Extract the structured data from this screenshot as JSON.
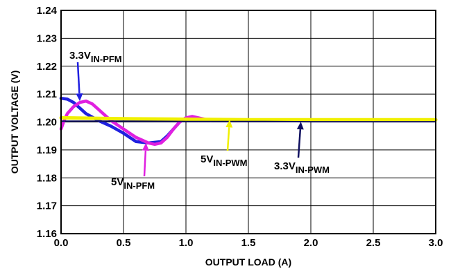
{
  "chart_data": {
    "type": "line",
    "title": "",
    "xlabel": "OUTPUT LOAD (A)",
    "ylabel": "OUTPUT VOLTAGE (V)",
    "xlim": [
      0,
      3.0
    ],
    "ylim": [
      1.16,
      1.24
    ],
    "xticks": [
      "0.0",
      "0.5",
      "1.0",
      "1.5",
      "2.0",
      "2.5",
      "3.0"
    ],
    "yticks": [
      "1.16",
      "1.17",
      "1.18",
      "1.19",
      "1.20",
      "1.21",
      "1.22",
      "1.23",
      "1.24"
    ],
    "grid": true,
    "series": [
      {
        "name": "3.3V IN-PFM",
        "color": "#2020e0",
        "x": [
          0.0,
          0.05,
          0.1,
          0.15,
          0.2,
          0.3,
          0.4,
          0.5,
          0.6,
          0.7,
          0.8,
          0.85,
          0.9,
          0.95,
          1.0,
          1.05,
          1.1
        ],
        "y": [
          1.2085,
          1.2082,
          1.207,
          1.205,
          1.203,
          1.2005,
          1.1985,
          1.196,
          1.193,
          1.1925,
          1.193,
          1.195,
          1.1975,
          1.2,
          1.2015,
          1.2015,
          1.2005
        ]
      },
      {
        "name": "5V IN-PFM",
        "color": "#e020e0",
        "x": [
          0.0,
          0.02,
          0.05,
          0.1,
          0.15,
          0.2,
          0.25,
          0.3,
          0.35,
          0.4,
          0.5,
          0.6,
          0.7,
          0.75,
          0.8,
          0.85,
          0.9,
          0.95,
          1.0,
          1.05,
          1.1,
          1.15,
          1.2
        ],
        "y": [
          1.1975,
          1.2,
          1.203,
          1.2055,
          1.207,
          1.2075,
          1.2065,
          1.2045,
          1.2025,
          1.2005,
          1.1975,
          1.1945,
          1.1925,
          1.192,
          1.1925,
          1.1945,
          1.1975,
          1.2,
          1.2015,
          1.202,
          1.2015,
          1.201,
          1.2005
        ]
      },
      {
        "name": "5V IN-PWM",
        "color": "#f0f000",
        "x": [
          0.0,
          0.5,
          1.0,
          1.5,
          2.0,
          2.5,
          3.0
        ],
        "y": [
          1.2015,
          1.2012,
          1.201,
          1.2008,
          1.2008,
          1.2008,
          1.2008
        ]
      },
      {
        "name": "3.3V IN-PWM",
        "color": "#101060",
        "x": [
          0.0,
          0.5,
          1.0,
          1.5,
          2.0,
          2.5,
          3.0
        ],
        "y": [
          1.2003,
          1.2003,
          1.2002,
          1.2002,
          1.2001,
          1.2001,
          1.2001
        ]
      }
    ],
    "annotations": [
      {
        "main": "3.3V",
        "sub": "IN-PFM",
        "color": "#2020e0",
        "target": [
          0.15,
          1.2075
        ]
      },
      {
        "main": "5V",
        "sub": "IN-PFM",
        "color": "#e020e0",
        "target": [
          0.68,
          1.1925
        ]
      },
      {
        "main": "5V",
        "sub": "IN-PWM",
        "color": "#f0f000",
        "target": [
          1.35,
          1.2008
        ]
      },
      {
        "main": "3.3V",
        "sub": "IN-PWM",
        "color": "#101060",
        "target": [
          1.92,
          1.2001
        ]
      }
    ]
  }
}
